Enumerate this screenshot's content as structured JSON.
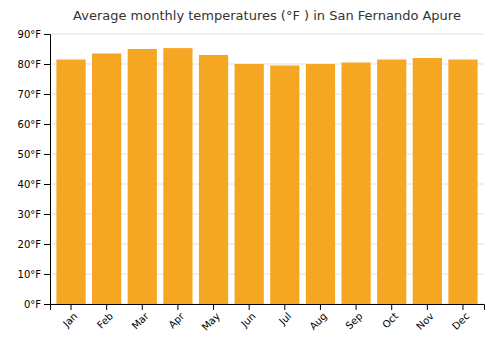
{
  "chart_data": {
    "type": "bar",
    "title": "Average monthly temperatures (°F ) in San Fernando Apure",
    "categories": [
      "Jan",
      "Feb",
      "Mar",
      "Apr",
      "May",
      "Jun",
      "Jul",
      "Aug",
      "Sep",
      "Oct",
      "Nov",
      "Dec"
    ],
    "values": [
      81.5,
      83.5,
      85.0,
      85.3,
      83.0,
      80.0,
      79.5,
      80.0,
      80.5,
      81.5,
      82.0,
      81.5
    ],
    "color": "#F5A623",
    "ylim": [
      0,
      90
    ],
    "yticks": [
      {
        "value": 0,
        "label": "0°F"
      },
      {
        "value": 10,
        "label": "10°F"
      },
      {
        "value": 20,
        "label": "20°F"
      },
      {
        "value": 30,
        "label": "30°F"
      },
      {
        "value": 40,
        "label": "40°F"
      },
      {
        "value": 50,
        "label": "50°F"
      },
      {
        "value": 60,
        "label": "60°F"
      },
      {
        "value": 70,
        "label": "70°F"
      },
      {
        "value": 80,
        "label": "80°F"
      },
      {
        "value": 90,
        "label": "90°F"
      }
    ],
    "grid": true
  }
}
